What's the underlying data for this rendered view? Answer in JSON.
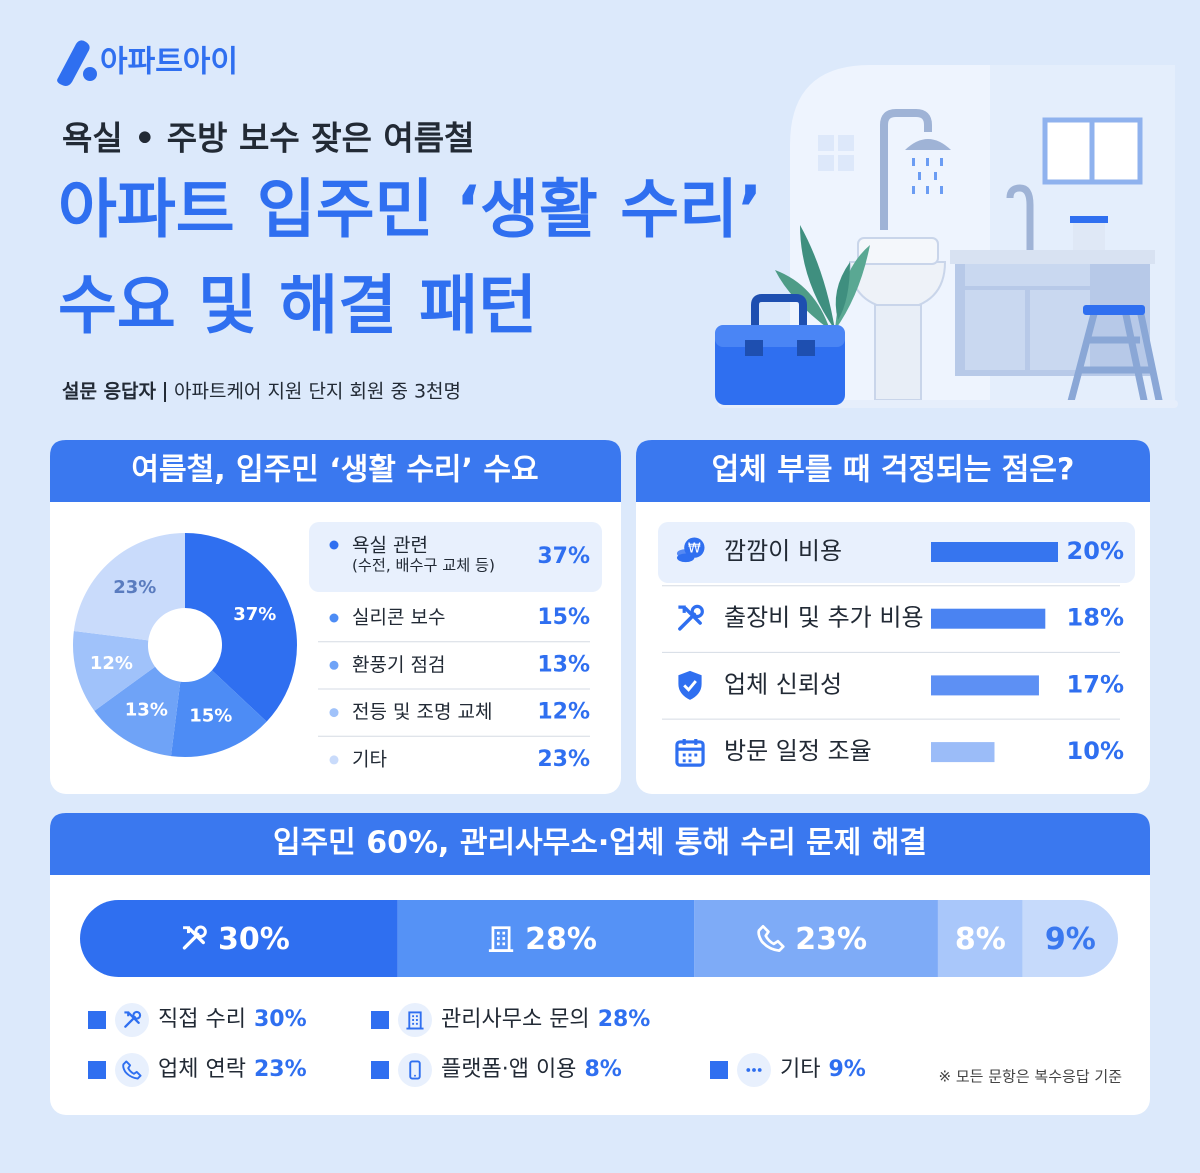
{
  "header": {
    "brand": "아파트아이",
    "kicker": "욕실 • 주방 보수 잦은 여름철",
    "title_lines": [
      "아파트 입주민 ‘생활 수리’",
      "수요 및 해결 패턴"
    ],
    "respondent_label": "설문 응답자",
    "respondent_text": "아파트케어 지원 단지 회원 중 3천명"
  },
  "chart_data": [
    {
      "type": "donut",
      "title": "여름철,  입주민 ‘생활 수리’ 수요",
      "categories": [
        "욕실 관련\n(수전, 배수구 교체 등)",
        "실리콘 보수",
        "환풍기 점검",
        "전등 및 조명 교체",
        "기타"
      ],
      "values": [
        37,
        15,
        13,
        12,
        23
      ],
      "value_labels": [
        "37%",
        "15%",
        "13%",
        "12%",
        "23%"
      ],
      "colors": [
        "#2f6ff0",
        "#4d8cf5",
        "#6fa3f7",
        "#a0c2fa",
        "#c9dbfb"
      ]
    },
    {
      "type": "hbar",
      "title": "업체 부를 때 걱정되는 점은?",
      "categories": [
        "깜깜이 비용",
        "출장비 및 추가 비용",
        "업체 신뢰성",
        "방문 일정 조율"
      ],
      "values": [
        20,
        18,
        17,
        10
      ],
      "value_labels": [
        "20%",
        "18%",
        "17%",
        "10%"
      ],
      "colors": [
        "#3675ef",
        "#4a83f2",
        "#5d90f4",
        "#9bbcf8"
      ]
    },
    {
      "type": "stacked-bar",
      "title": "입주민 60%, 관리사무소·업체 통해 수리 문제 해결",
      "categories": [
        "직접 수리",
        "관리사무소 문의",
        "업체 연락",
        "플랫폼·앱 이용",
        "기타"
      ],
      "values": [
        30,
        28,
        23,
        8,
        9
      ],
      "value_labels": [
        "30%",
        "28%",
        "23%",
        "8%",
        "9%"
      ],
      "colors": [
        "#2f6ff0",
        "#5592f6",
        "#7eabf7",
        "#a9c7fa",
        "#c6daFB"
      ],
      "legend_color": "#2f6ff0"
    }
  ],
  "footnote": "※ 모든 문항은 복수응답 기준"
}
